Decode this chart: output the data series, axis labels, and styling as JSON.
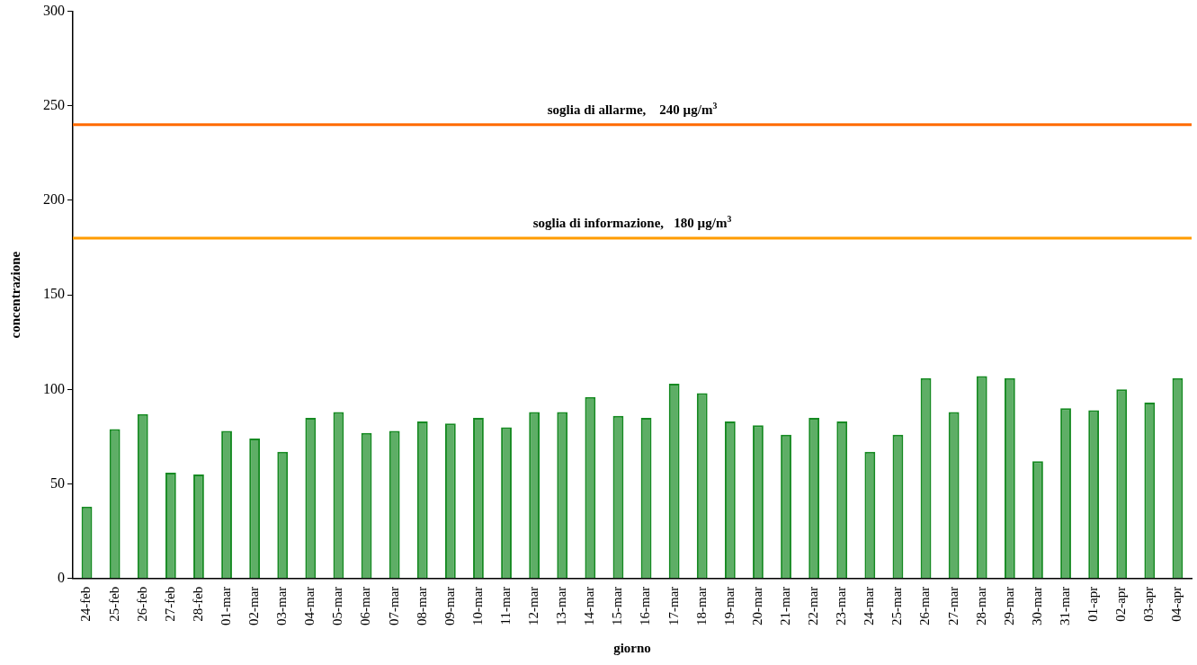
{
  "chart_data": {
    "type": "bar",
    "xlabel": "giorno",
    "ylabel": "concentrazione",
    "categories": [
      "24-feb",
      "25-feb",
      "26-feb",
      "27-feb",
      "28-feb",
      "01-mar",
      "02-mar",
      "03-mar",
      "04-mar",
      "05-mar",
      "06-mar",
      "07-mar",
      "08-mar",
      "09-mar",
      "10-mar",
      "11-mar",
      "12-mar",
      "13-mar",
      "14-mar",
      "15-mar",
      "16-mar",
      "17-mar",
      "18-mar",
      "19-mar",
      "20-mar",
      "21-mar",
      "22-mar",
      "23-mar",
      "24-mar",
      "25-mar",
      "26-mar",
      "27-mar",
      "28-mar",
      "29-mar",
      "30-mar",
      "31-mar",
      "01-apr",
      "02-apr",
      "03-apr",
      "04-apr"
    ],
    "values": [
      38,
      79,
      87,
      56,
      55,
      78,
      74,
      67,
      85,
      88,
      77,
      78,
      83,
      82,
      85,
      80,
      88,
      88,
      96,
      86,
      85,
      103,
      98,
      83,
      81,
      76,
      85,
      83,
      67,
      76,
      106,
      88,
      107,
      106,
      62,
      90,
      89,
      100,
      93,
      106
    ],
    "color": "#168a22",
    "ylim": [
      0,
      300
    ],
    "yticks": [
      0,
      50,
      100,
      150,
      200,
      250,
      300
    ],
    "ref_lines": [
      {
        "axis": "y",
        "value": 240,
        "label": "soglia di allarme,    240 µg/m$^{3}$",
        "color": "#ff6a00"
      },
      {
        "axis": "y",
        "value": 180,
        "label": "soglia di informazione,   180 µg/m$^{3}$",
        "color": "#ff9c00"
      }
    ]
  }
}
